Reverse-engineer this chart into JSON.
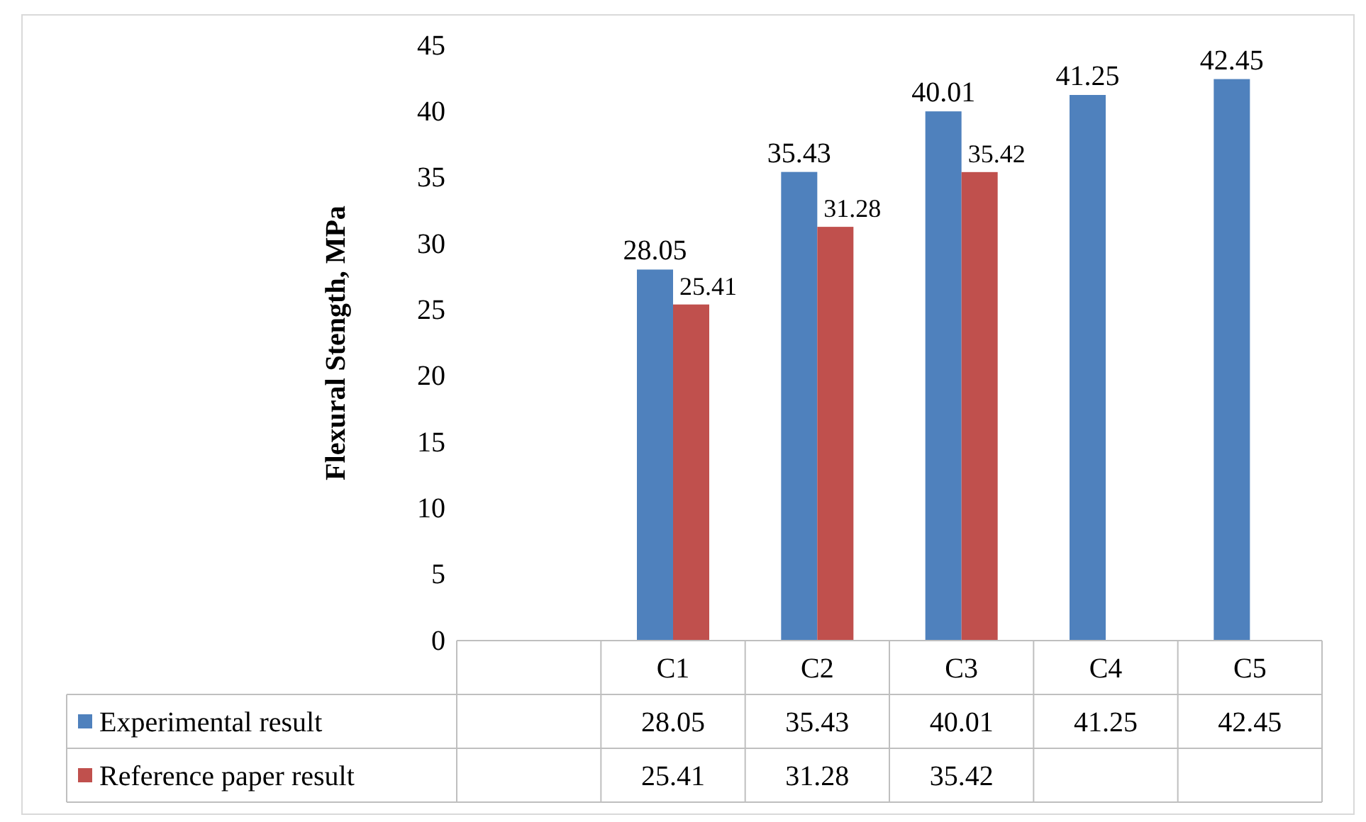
{
  "chart_data": {
    "type": "bar",
    "ylabel": "Flexural Stength, MPa",
    "categories": [
      null,
      "C1",
      "C2",
      "C3",
      "C4",
      "C5"
    ],
    "series": [
      {
        "name": "Experimental result",
        "color": "#4f81bd",
        "values": [
          null,
          28.05,
          35.43,
          40.01,
          41.25,
          42.45
        ],
        "value_labels": [
          null,
          "28.05",
          "35.43",
          "40.01",
          "41.25",
          "42.45"
        ]
      },
      {
        "name": "Reference paper result",
        "color": "#c0504d",
        "values": [
          null,
          25.41,
          31.28,
          35.42,
          null,
          null
        ],
        "value_labels": [
          null,
          "25.41",
          "31.28",
          "35.42",
          null,
          null
        ]
      }
    ],
    "ylim": [
      0,
      45
    ],
    "yticks": [
      0,
      5,
      10,
      15,
      20,
      25,
      30,
      35,
      40,
      45
    ],
    "grid": false,
    "legend": "bottom",
    "annotations": [
      "28.05",
      "35.43",
      "40.01",
      "41.25",
      "42.45",
      "25.41",
      "31.28",
      "35.42"
    ]
  }
}
